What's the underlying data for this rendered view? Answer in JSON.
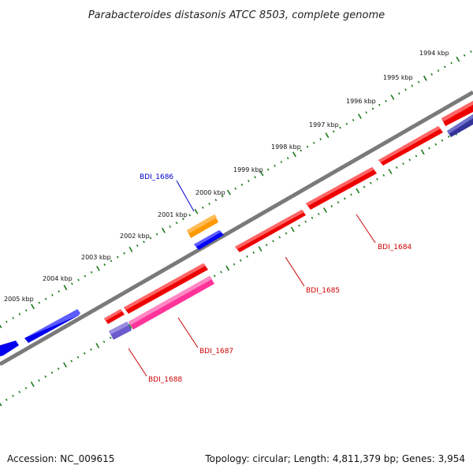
{
  "title": "Parabacteroides distasonis ATCC 8503, complete genome",
  "footer": {
    "accession": "Accession: NC_009615",
    "summary": "Topology: circular; Length: 4,811,379 bp; Genes: 3,954"
  },
  "ticks": {
    "labels": [
      "1994 kbp",
      "1995 kbp",
      "1996 kbp",
      "1997 kbp",
      "1998 kbp",
      "1999 kbp",
      "2000 kbp",
      "2001 kbp",
      "2002 kbp",
      "2003 kbp",
      "2004 kbp",
      "2005 kbp"
    ]
  },
  "genes": [
    {
      "id": "BDI_1684",
      "color": "#e60000",
      "label_color": "#cc0000",
      "strand": "minus"
    },
    {
      "id": "BDI_1685",
      "color": "#e60000",
      "label_color": "#cc0000",
      "strand": "minus"
    },
    {
      "id": "BDI_1686",
      "color": "#0000ff",
      "label_color": "#0000cc",
      "strand": "plus"
    },
    {
      "id": "BDI_1687",
      "color": "#ff3399",
      "label_color": "#cc0000",
      "strand": "minus"
    },
    {
      "id": "BDI_1688",
      "color": "#6a5acd",
      "label_color": "#cc0000",
      "strand": "minus"
    }
  ],
  "colors": {
    "backbone": "#808080",
    "tick": "#1a7a1a",
    "orange_feature": "#ff9900",
    "blue_feature": "#0000ff"
  }
}
